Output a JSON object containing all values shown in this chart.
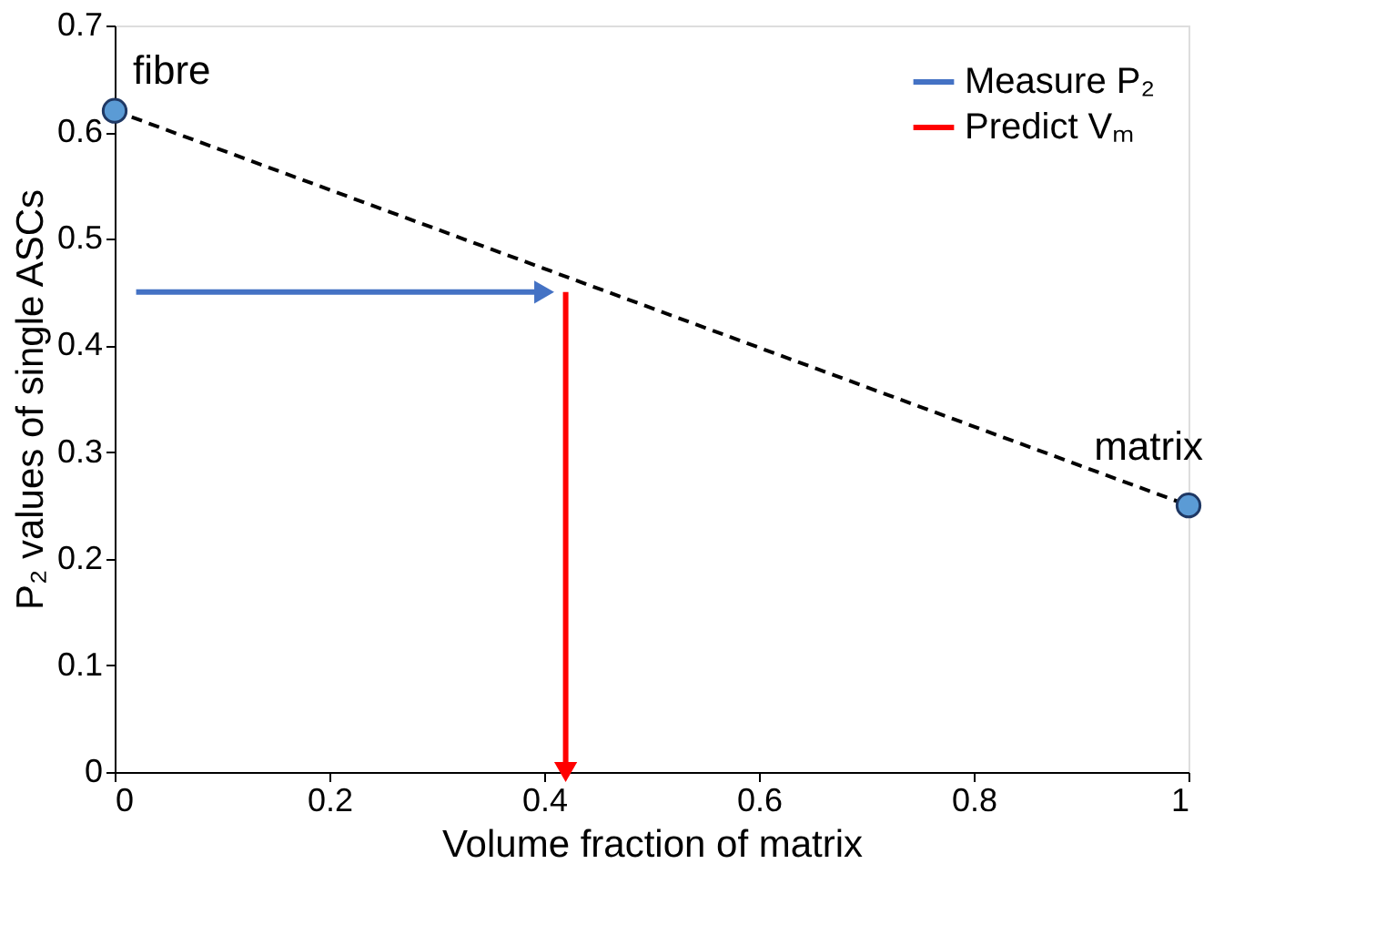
{
  "chart_data": {
    "type": "line",
    "xlabel": "Volume fraction of matrix",
    "ylabel": "P₂ values of single ASCs",
    "xlim": [
      0,
      1
    ],
    "xticks": [
      0,
      0.2,
      0.4,
      0.6,
      0.8,
      1
    ],
    "ylim": [
      0,
      0.7
    ],
    "yticks": [
      0,
      0.1,
      0.2,
      0.3,
      0.4,
      0.5,
      0.6,
      0.7
    ],
    "grid": false,
    "legend": "top right",
    "series": [
      {
        "line_style": "dashed",
        "color": "#000000",
        "x": [
          0,
          1
        ],
        "values": [
          0.62,
          0.25
        ]
      },
      {
        "type": "scatter",
        "marker": "circle",
        "color": "#5b9bd5",
        "x": [
          0,
          1
        ],
        "values": [
          0.62,
          0.25
        ]
      },
      {
        "marker": "triangle",
        "name": "Measure P₂",
        "color": "#4472c4",
        "x": [
          0.02,
          0.4
        ],
        "values": [
          0.45,
          0.45
        ]
      },
      {
        "marker": "triangle",
        "name": "Predict Vₘ",
        "color": "#ff0000",
        "x": [
          0.42,
          0.42
        ],
        "values": [
          0.45,
          0.0
        ]
      }
    ],
    "annotations": [
      {
        "text": "fibre",
        "x": 0,
        "y": 0.62
      },
      {
        "text": "matrix",
        "x": 1,
        "y": 0.25
      }
    ]
  }
}
